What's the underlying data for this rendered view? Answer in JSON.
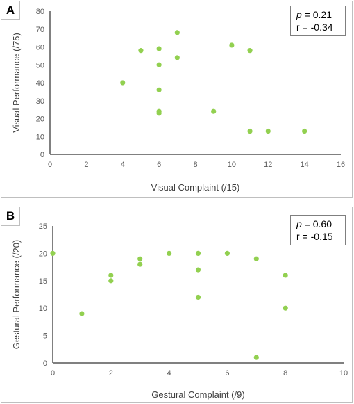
{
  "chart_data": [
    {
      "panel": "A",
      "type": "scatter",
      "xlabel": "Visual Complaint (/15)",
      "ylabel": "Visual Performance (/75)",
      "xlim": [
        0,
        16
      ],
      "ylim": [
        0,
        80
      ],
      "xticks": [
        0,
        2,
        4,
        6,
        8,
        10,
        12,
        14,
        16
      ],
      "yticks": [
        0,
        10,
        20,
        30,
        40,
        50,
        60,
        70,
        80
      ],
      "stats": {
        "p_label": "p",
        "p_value": "= 0.21",
        "r": "r = -0.34"
      },
      "grid": false,
      "color": "#92d050",
      "points": [
        [
          4,
          40
        ],
        [
          5,
          58
        ],
        [
          6,
          59
        ],
        [
          6,
          50
        ],
        [
          6,
          36
        ],
        [
          6,
          24
        ],
        [
          6,
          23
        ],
        [
          7,
          68
        ],
        [
          7,
          54
        ],
        [
          9,
          24
        ],
        [
          10,
          61
        ],
        [
          11,
          58
        ],
        [
          11,
          13
        ],
        [
          12,
          13
        ],
        [
          14,
          13
        ]
      ]
    },
    {
      "panel": "B",
      "type": "scatter",
      "xlabel": "Gestural Complaint (/9)",
      "ylabel": "Gestural Performance (/20)",
      "xlim": [
        0,
        10
      ],
      "ylim": [
        0,
        25
      ],
      "xticks": [
        0,
        2,
        4,
        6,
        8,
        10
      ],
      "yticks": [
        0,
        5,
        10,
        15,
        20,
        25
      ],
      "stats": {
        "p_label": "p",
        "p_value": "= 0.60",
        "r": "r = -0.15"
      },
      "grid": false,
      "color": "#92d050",
      "points": [
        [
          0,
          20
        ],
        [
          1,
          9
        ],
        [
          2,
          16
        ],
        [
          2,
          15
        ],
        [
          3,
          19
        ],
        [
          3,
          18
        ],
        [
          4,
          20
        ],
        [
          5,
          20
        ],
        [
          5,
          17
        ],
        [
          5,
          12
        ],
        [
          6,
          20
        ],
        [
          7,
          19
        ],
        [
          7,
          1
        ],
        [
          8,
          16
        ],
        [
          8,
          10
        ]
      ]
    }
  ]
}
